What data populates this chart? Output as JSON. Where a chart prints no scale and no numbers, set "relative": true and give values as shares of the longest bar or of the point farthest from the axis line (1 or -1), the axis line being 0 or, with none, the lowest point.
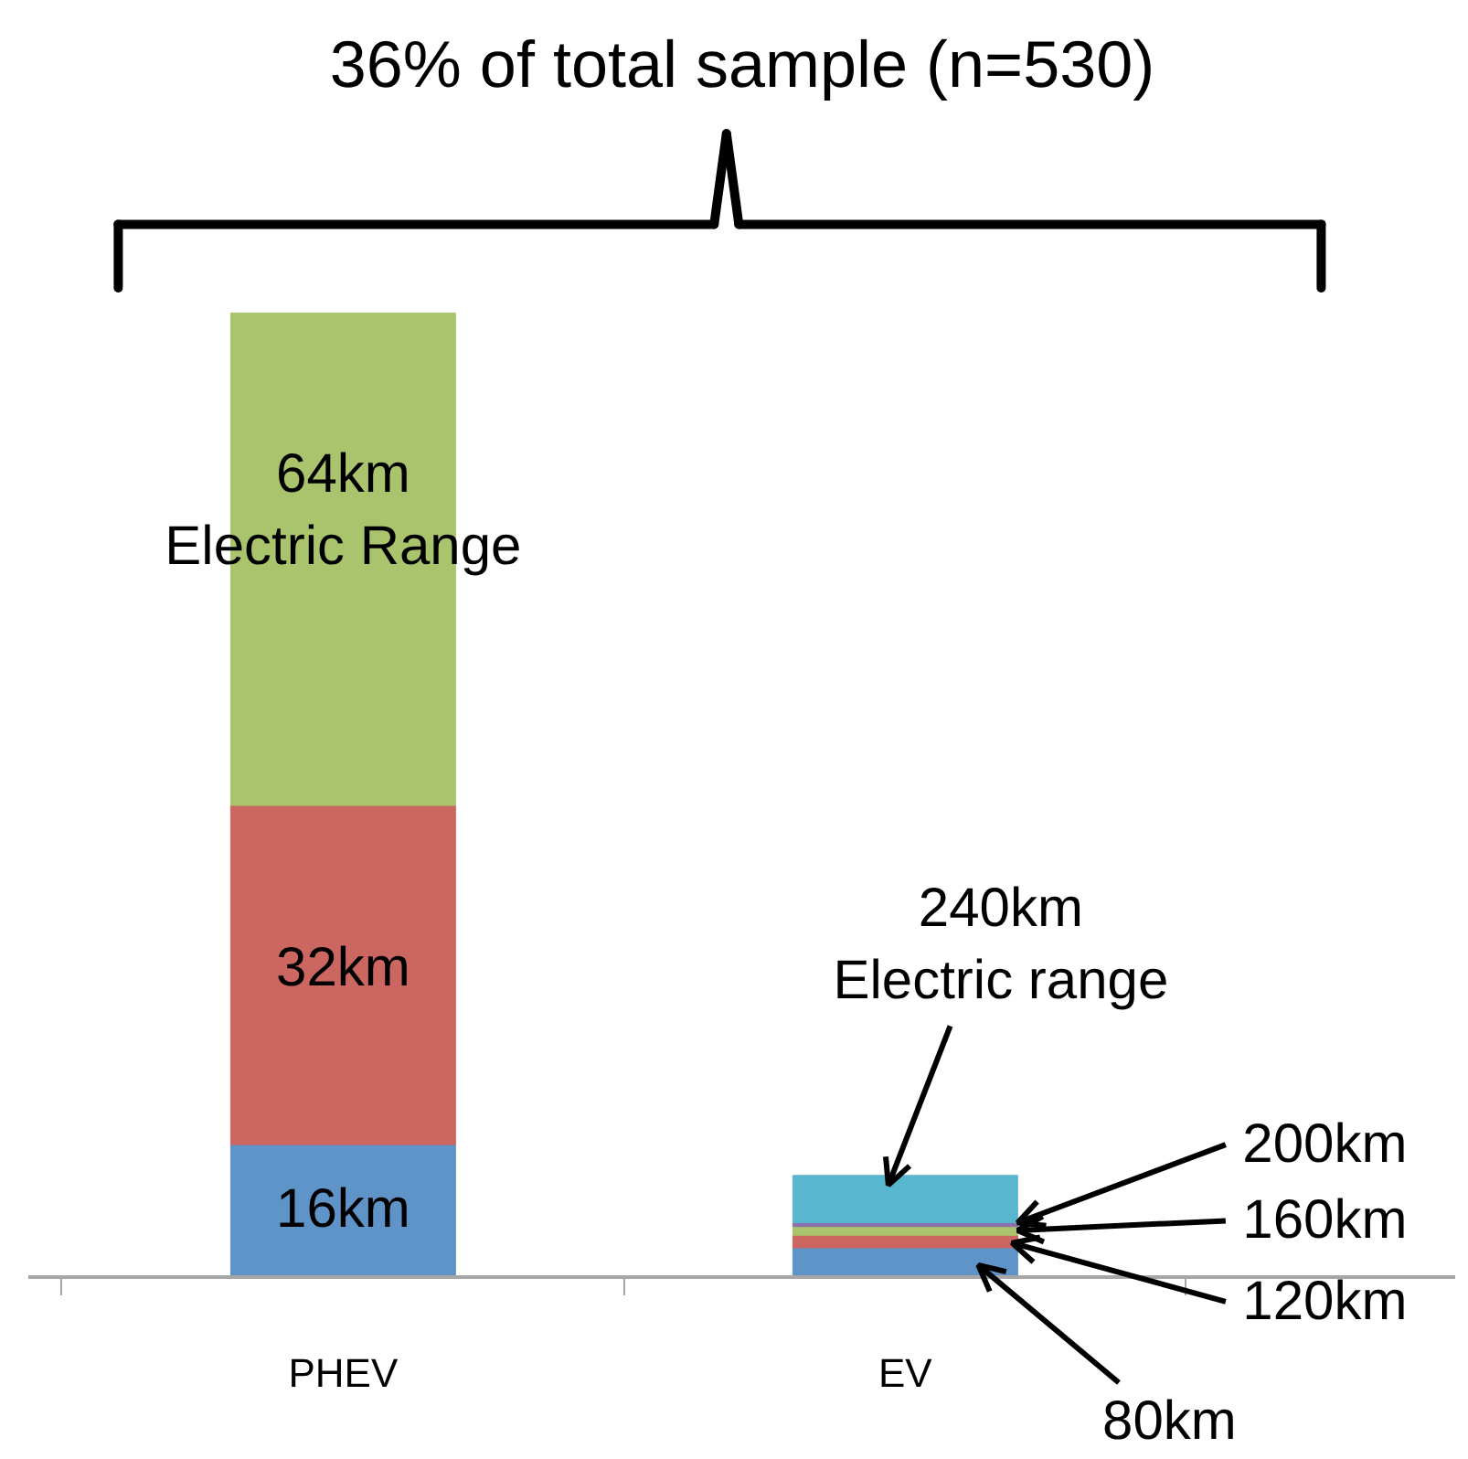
{
  "chart_data": {
    "type": "bar",
    "title": "36% of total sample (n=530)",
    "relative": true,
    "stacked": true,
    "categories": [
      "PHEV",
      "EV"
    ],
    "series": [
      {
        "color": "#5f94c8",
        "values": [
          0.137,
          0.03
        ]
      },
      {
        "color": "#cc6660",
        "values": [
          0.352,
          0.013
        ]
      },
      {
        "color": "#a9c46c",
        "values": [
          0.511,
          0.009
        ]
      },
      {
        "color": "#8c6fae",
        "values": [
          null,
          0.004
        ]
      },
      {
        "color": "#59b6cf",
        "values": [
          null,
          0.049
        ]
      }
    ],
    "annotations": [
      "64km\nElectric Range",
      "32km",
      "16km",
      "240km\nElectric range",
      "200km",
      "160km",
      "120km",
      "80km"
    ],
    "grid": false
  }
}
